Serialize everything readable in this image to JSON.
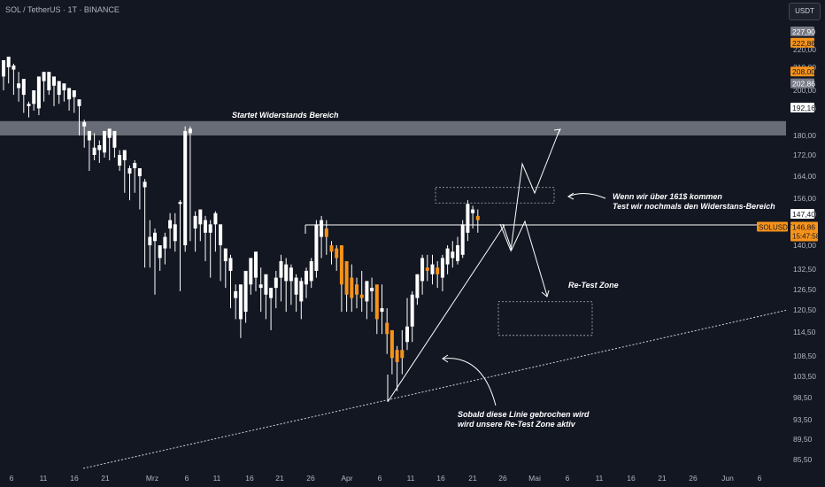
{
  "header": {
    "title": "SOL / TetherUS · 1T · BINANCE",
    "currency_button": "USDT"
  },
  "annotations": {
    "resistance": "Startet Widerstands Bereich",
    "break_note_line1": "Wenn wir über 161$ kommen",
    "break_note_line2": "Test wir nochmals den Widerstans-Bereich",
    "retest": "Re-Test Zone",
    "trend_note_line1": "Sobald diese Linie gebrochen wird",
    "trend_note_line2": "wird unsere Re-Test Zone aktiv"
  },
  "colors": {
    "background": "#131722",
    "candle": "#f7931a",
    "wick": "#ffffff",
    "resistance_band": "#787b86",
    "axis_text": "#b2b5be",
    "last_price_badge": "#f7931a"
  },
  "chart_data": {
    "type": "candlestick",
    "symbol_label": "SOLUSDT",
    "y_ticks": [
      "85,50",
      "89,50",
      "93,50",
      "98,50",
      "103,50",
      "108,50",
      "114,50",
      "120,50",
      "126,50",
      "132,50",
      "140,00",
      "147,40",
      "156,00",
      "164,00",
      "172,00",
      "180,00",
      "192,16",
      "200,00",
      "210,00",
      "220,00"
    ],
    "price_labels": [
      {
        "text": "227,90",
        "value": 227.9,
        "style": "gray"
      },
      {
        "text": "222,86",
        "value": 222.86,
        "style": "orange"
      },
      {
        "text": "208,00",
        "value": 208.0,
        "style": "orange"
      },
      {
        "text": "202,86",
        "value": 202.86,
        "style": "gray"
      },
      {
        "text": "192,16",
        "value": 192.16,
        "style": "white"
      },
      {
        "text": "147,40",
        "value": 147.4,
        "style": "white"
      }
    ],
    "last_price": {
      "value": 146.86,
      "text": "146,86",
      "countdown": "15:47:58"
    },
    "x_ticks": [
      "6",
      "11",
      "16",
      "21",
      "Mrz",
      "6",
      "11",
      "16",
      "21",
      "26",
      "Apr",
      "6",
      "11",
      "16",
      "21",
      "26",
      "Mai",
      "6",
      "11",
      "16",
      "21",
      "26",
      "Jun",
      "6"
    ],
    "resistance_zone": [
      180,
      184
    ],
    "horizontal_level": 147.4,
    "candles": [
      [
        206,
        214,
        208,
        200
      ],
      [
        210,
        216,
        211,
        203
      ],
      [
        209,
        211,
        212,
        198
      ],
      [
        201,
        203,
        208,
        195
      ],
      [
        198,
        205,
        200,
        190
      ],
      [
        193,
        194,
        195,
        188
      ],
      [
        194,
        200,
        197,
        191
      ],
      [
        192,
        206,
        194,
        189
      ],
      [
        204,
        208,
        205,
        195
      ],
      [
        200,
        208,
        203,
        198
      ],
      [
        202,
        206,
        203,
        193
      ],
      [
        198,
        204,
        200,
        194
      ],
      [
        200,
        203,
        202,
        195
      ],
      [
        196,
        201,
        197,
        191
      ],
      [
        197,
        200,
        198,
        190
      ],
      [
        193,
        196,
        195,
        180
      ],
      [
        184,
        186,
        187,
        175
      ],
      [
        178,
        182,
        180,
        166
      ],
      [
        172,
        175,
        181,
        170
      ],
      [
        174,
        176,
        178,
        169
      ],
      [
        173,
        182,
        175,
        171
      ],
      [
        179,
        183,
        180,
        170
      ],
      [
        175,
        182,
        178,
        171
      ],
      [
        168,
        172,
        174,
        166
      ],
      [
        170,
        174,
        172,
        158
      ],
      [
        165,
        167,
        168,
        155
      ],
      [
        167,
        169,
        170,
        158
      ],
      [
        164,
        167,
        167,
        150
      ],
      [
        160,
        162,
        163,
        133
      ],
      [
        140,
        142,
        146,
        133
      ],
      [
        141,
        143,
        144,
        125
      ],
      [
        136,
        140,
        140,
        132
      ],
      [
        139,
        142,
        143,
        134
      ],
      [
        144,
        146,
        148,
        139
      ],
      [
        141,
        145,
        148,
        138
      ],
      [
        153,
        154,
        155,
        126
      ],
      [
        140,
        182,
        184,
        138
      ],
      [
        181,
        183,
        184,
        141
      ],
      [
        144,
        147,
        149,
        138
      ],
      [
        145,
        150,
        150,
        141
      ],
      [
        143,
        146,
        147,
        135
      ],
      [
        143,
        145,
        146,
        130
      ],
      [
        145,
        148,
        149,
        138
      ],
      [
        140,
        145,
        145,
        129
      ],
      [
        135,
        139,
        139,
        127
      ],
      [
        132,
        136,
        137,
        121
      ],
      [
        124,
        126,
        128,
        118
      ],
      [
        118,
        128,
        127,
        113
      ],
      [
        120,
        132,
        131,
        117
      ],
      [
        128,
        136,
        136,
        125
      ],
      [
        130,
        138,
        137,
        126
      ],
      [
        127,
        128,
        133,
        120
      ],
      [
        125,
        131,
        130,
        118
      ],
      [
        124,
        127,
        127,
        115
      ],
      [
        127,
        130,
        132,
        121
      ],
      [
        130,
        135,
        137,
        123
      ],
      [
        129,
        134,
        136,
        120
      ],
      [
        129,
        133,
        134,
        122
      ],
      [
        125,
        130,
        131,
        120
      ],
      [
        123,
        129,
        130,
        118
      ],
      [
        128,
        132,
        133,
        124
      ],
      [
        129,
        135,
        136,
        127
      ],
      [
        132,
        145,
        146,
        130
      ],
      [
        142,
        146,
        147,
        136
      ],
      [
        144,
        142,
        146,
        137
      ],
      [
        140,
        138,
        141,
        134
      ],
      [
        139,
        136,
        140,
        132
      ],
      [
        140,
        128,
        138,
        120
      ],
      [
        135,
        125,
        129,
        120
      ],
      [
        130,
        124,
        134,
        120
      ],
      [
        128,
        125,
        130,
        121
      ],
      [
        125,
        124,
        132,
        120
      ],
      [
        123,
        129,
        129,
        118
      ],
      [
        126,
        127,
        130,
        120
      ],
      [
        128,
        118,
        126,
        114
      ],
      [
        120,
        121,
        128,
        114
      ],
      [
        117,
        114,
        121,
        109
      ],
      [
        115,
        108,
        112,
        104
      ],
      [
        110,
        107,
        111,
        100
      ],
      [
        110,
        108,
        115,
        104
      ],
      [
        112,
        116,
        124,
        110
      ],
      [
        116,
        125,
        126,
        112
      ],
      [
        124,
        131,
        131,
        122
      ],
      [
        129,
        136,
        137,
        125
      ],
      [
        133,
        132,
        137,
        129
      ],
      [
        131,
        134,
        137,
        128
      ],
      [
        133,
        131,
        135,
        127
      ],
      [
        130,
        136,
        137,
        126
      ],
      [
        134,
        139,
        140,
        131
      ],
      [
        136,
        138,
        141,
        133
      ],
      [
        135,
        140,
        142,
        134
      ],
      [
        137,
        145,
        146,
        136
      ],
      [
        143,
        153,
        155,
        141
      ],
      [
        148,
        150,
        152,
        144
      ],
      [
        147,
        146,
        150,
        143
      ]
    ],
    "trendlines": [
      {
        "name": "lower-trend",
        "from": [
          "16 Feb",
          85.5
        ],
        "to": [
          "Jun",
          118
        ]
      },
      {
        "name": "rising-support",
        "from": [
          "6 Apr",
          100
        ],
        "to": [
          "26 Apr",
          147.4
        ]
      }
    ],
    "boxes": [
      {
        "name": "breakout-box",
        "price_range": [
          153.5,
          158
        ]
      },
      {
        "name": "retest-box",
        "price_range": [
          115.5,
          125
        ]
      }
    ]
  }
}
